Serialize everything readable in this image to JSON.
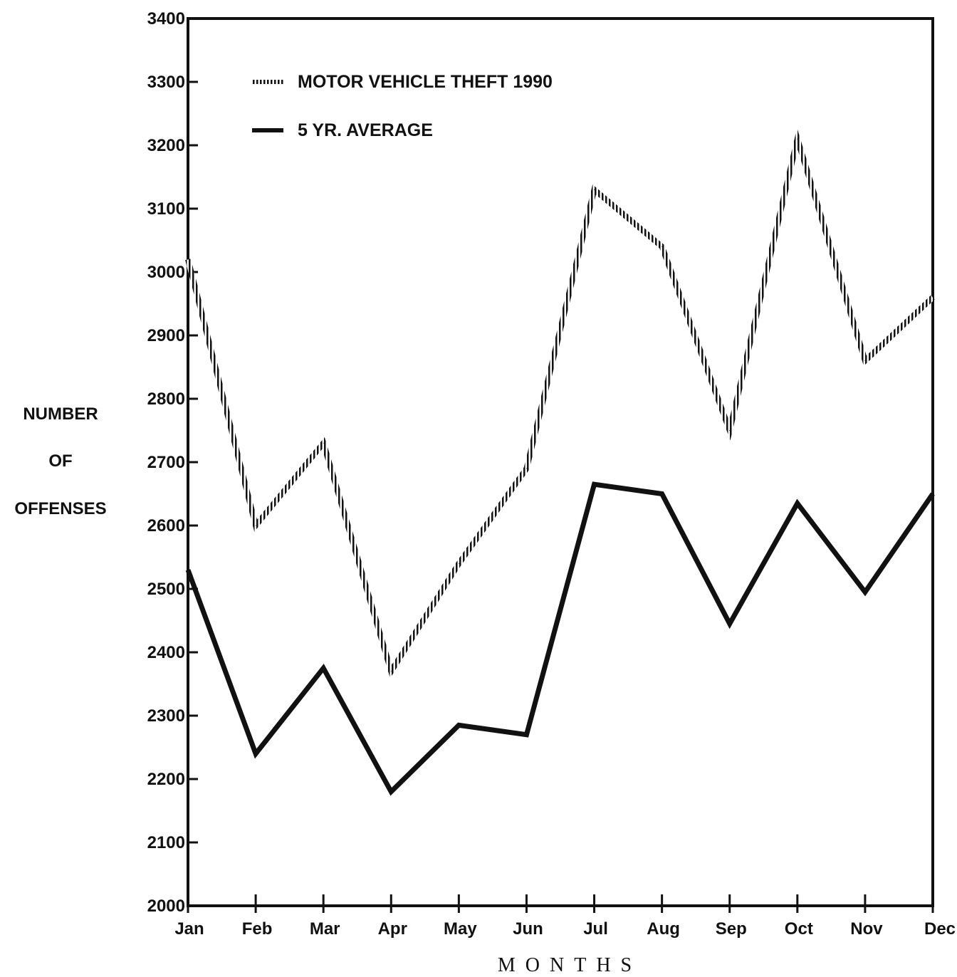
{
  "chart_data": {
    "type": "line",
    "title": "",
    "xlabel": "MONTHS",
    "ylabel": [
      "NUMBER",
      "OF",
      "OFFENSES"
    ],
    "categories": [
      "Jan",
      "Feb",
      "Mar",
      "Apr",
      "May",
      "Jun",
      "Jul",
      "Aug",
      "Sep",
      "Oct",
      "Nov",
      "Dec"
    ],
    "ylim": [
      2000,
      3400
    ],
    "yticks": [
      2000,
      2100,
      2200,
      2300,
      2400,
      2500,
      2600,
      2700,
      2800,
      2900,
      3000,
      3100,
      3200,
      3300,
      3400
    ],
    "grid": false,
    "legend_position": "top-left",
    "series": [
      {
        "name": "MOTOR VEHICLE THEFT 1990",
        "style": "hatched",
        "color": "#111111",
        "values": [
          3020,
          2600,
          2730,
          2370,
          2540,
          2690,
          3130,
          3040,
          2750,
          3210,
          2860,
          2960
        ]
      },
      {
        "name": "5 YR. AVERAGE",
        "style": "solid",
        "color": "#111111",
        "values": [
          2530,
          2240,
          2375,
          2180,
          2285,
          2270,
          2665,
          2650,
          2445,
          2635,
          2495,
          2650
        ]
      }
    ]
  }
}
